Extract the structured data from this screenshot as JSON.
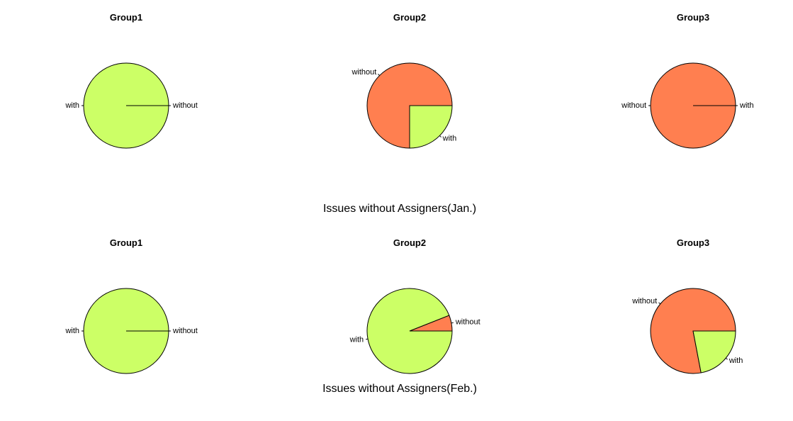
{
  "colors": {
    "with": "#CCFF66",
    "without": "#FF7F50",
    "outline": "#000000"
  },
  "sections": [
    {
      "caption": "Issues without Assigners(Jan.)",
      "pies": [
        {
          "title": "Group1",
          "slices": [
            {
              "label": "without",
              "value": 0
            },
            {
              "label": "with",
              "value": 1
            }
          ]
        },
        {
          "title": "Group2",
          "slices": [
            {
              "label": "without",
              "value": 0.75
            },
            {
              "label": "with",
              "value": 0.25
            }
          ]
        },
        {
          "title": "Group3",
          "slices": [
            {
              "label": "with",
              "value": 0
            },
            {
              "label": "without",
              "value": 1
            }
          ]
        }
      ]
    },
    {
      "caption": "Issues without Assigners(Feb.)",
      "pies": [
        {
          "title": "Group1",
          "slices": [
            {
              "label": "without",
              "value": 0
            },
            {
              "label": "with",
              "value": 1
            }
          ]
        },
        {
          "title": "Group2",
          "slices": [
            {
              "label": "without",
              "value": 0.06
            },
            {
              "label": "with",
              "value": 0.94
            }
          ]
        },
        {
          "title": "Group3",
          "slices": [
            {
              "label": "without",
              "value": 0.78
            },
            {
              "label": "with",
              "value": 0.22
            }
          ]
        }
      ]
    }
  ],
  "chart_data": [
    {
      "type": "pie",
      "title": "Group1",
      "caption": "Issues without Assigners(Jan.)",
      "categories": [
        "without",
        "with"
      ],
      "values": [
        0,
        1
      ]
    },
    {
      "type": "pie",
      "title": "Group2",
      "caption": "Issues without Assigners(Jan.)",
      "categories": [
        "without",
        "with"
      ],
      "values": [
        0.75,
        0.25
      ]
    },
    {
      "type": "pie",
      "title": "Group3",
      "caption": "Issues without Assigners(Jan.)",
      "categories": [
        "with",
        "without"
      ],
      "values": [
        0,
        1
      ]
    },
    {
      "type": "pie",
      "title": "Group1",
      "caption": "Issues without Assigners(Feb.)",
      "categories": [
        "without",
        "with"
      ],
      "values": [
        0,
        1
      ]
    },
    {
      "type": "pie",
      "title": "Group2",
      "caption": "Issues without Assigners(Feb.)",
      "categories": [
        "without",
        "with"
      ],
      "values": [
        0.06,
        0.94
      ]
    },
    {
      "type": "pie",
      "title": "Group3",
      "caption": "Issues without Assigners(Feb.)",
      "categories": [
        "without",
        "with"
      ],
      "values": [
        0.78,
        0.22
      ]
    }
  ]
}
